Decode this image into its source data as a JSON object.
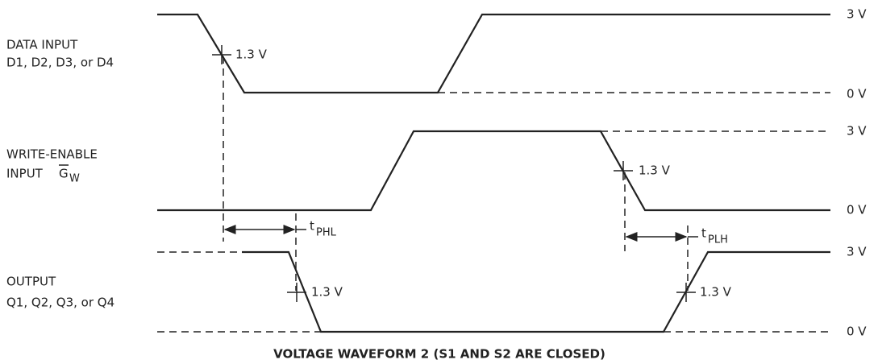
{
  "signals": [
    {
      "label_lines": [
        "DATA INPUT",
        "D1, D2, D3, or D4"
      ],
      "high": "3 V",
      "low": "0 V",
      "crossings": [
        "1.3 V"
      ]
    },
    {
      "label_lines": [
        "WRITE-ENABLE"
      ],
      "label_prefix": "INPUT ",
      "label_symbol": "G",
      "label_subscript": "W",
      "high": "3 V",
      "low": "0 V",
      "crossings": [
        "1.3 V"
      ]
    },
    {
      "label_lines": [
        "OUTPUT",
        "Q1, Q2, Q3, or Q4"
      ],
      "high": "3 V",
      "low": "0 V",
      "crossings": [
        "1.3 V",
        "1.3 V"
      ]
    }
  ],
  "delays": [
    {
      "symbol": "t",
      "subscript": "PHL"
    },
    {
      "symbol": "t",
      "subscript": "PLH"
    }
  ],
  "caption": "VOLTAGE WAVEFORM 2 (S1 AND S2 ARE CLOSED)"
}
